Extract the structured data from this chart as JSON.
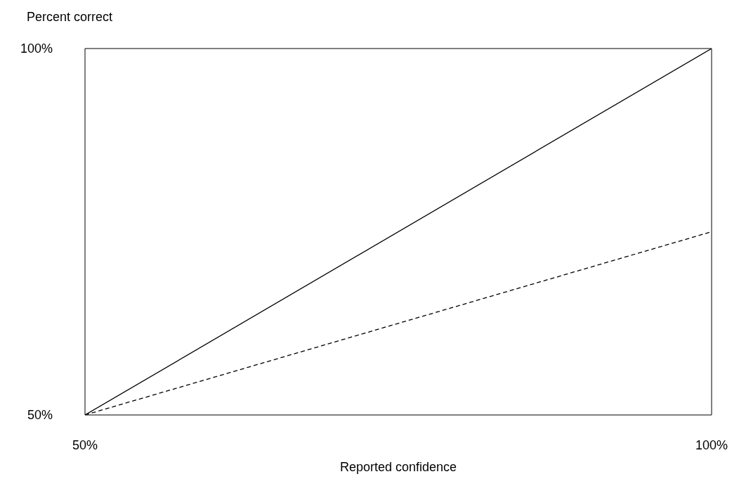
{
  "chart_data": {
    "type": "line",
    "xlabel": "Reported confidence",
    "ylabel": "Percent correct",
    "x": [
      50,
      100
    ],
    "series": [
      {
        "color": "#000000",
        "values": [
          50,
          100
        ],
        "line_style": "solid"
      },
      {
        "color": "#000000",
        "values": [
          50,
          75
        ],
        "line_style": "dashed"
      }
    ],
    "xlim": [
      50,
      100
    ],
    "ylim": [
      50,
      100
    ],
    "xticks": [
      {
        "value": 50,
        "label": "50%"
      },
      {
        "value": 100,
        "label": "100%"
      }
    ],
    "yticks": [
      {
        "value": 50,
        "label": "50%"
      },
      {
        "value": 100,
        "label": "100%"
      }
    ],
    "marker": "none"
  }
}
